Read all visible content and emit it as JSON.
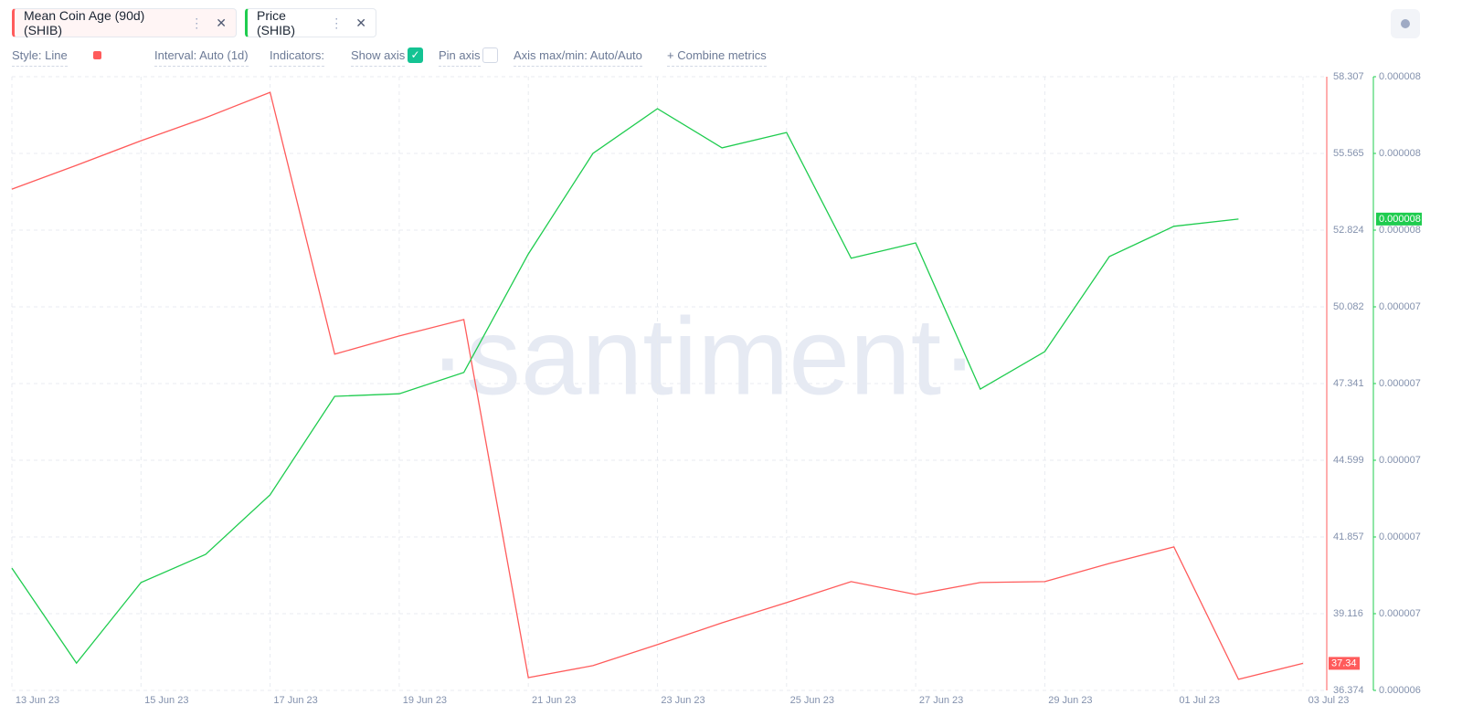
{
  "toolbar": {
    "style": "Style: Line",
    "interval": "Interval: Auto (1d)",
    "indicators": "Indicators:",
    "show_axis": "Show axis",
    "pin_axis": "Pin axis",
    "axis_maxmin": "Axis max/min: Auto/Auto",
    "combine": "Combine metrics"
  },
  "chart_data": {
    "type": "line",
    "watermark": "·santiment·",
    "categories": [
      "13 Jun 23",
      null,
      "15 Jun 23",
      null,
      "17 Jun 23",
      null,
      "19 Jun 23",
      null,
      "21 Jun 23",
      null,
      "23 Jun 23",
      null,
      "25 Jun 23",
      null,
      "27 Jun 23",
      null,
      "29 Jun 23",
      null,
      "01 Jul 23",
      null,
      "03 Jul 23"
    ],
    "ylim": [
      36.374,
      58.307
    ],
    "yticks": [
      36.374,
      39.116,
      41.857,
      44.599,
      47.341,
      50.082,
      52.824,
      55.565,
      58.307
    ],
    "y2lim": [
      6.48e-06,
      7.92e-06
    ],
    "y2ticks": [
      {
        "value": 6.48e-06,
        "label": "0.000006"
      },
      {
        "value": 6.66e-06,
        "label": "0.000007"
      },
      {
        "value": 6.84e-06,
        "label": "0.000007"
      },
      {
        "value": 7.02e-06,
        "label": "0.000007"
      },
      {
        "value": 7.2e-06,
        "label": "0.000007"
      },
      {
        "value": 7.38e-06,
        "label": "0.000007"
      },
      {
        "value": 7.56e-06,
        "label": "0.000008"
      },
      {
        "value": 7.74e-06,
        "label": "0.000008"
      },
      {
        "value": 7.92e-06,
        "label": "0.000008"
      }
    ],
    "grid": true,
    "series": [
      {
        "name": "Mean Coin Age (90d) (SHIB)",
        "color": "#ff5b5b",
        "axis": "y",
        "values": [
          54.29,
          55.14,
          56.02,
          56.84,
          57.75,
          48.39,
          49.04,
          49.63,
          36.83,
          37.26,
          38.01,
          38.79,
          39.51,
          40.26,
          39.8,
          40.23,
          40.26,
          40.91,
          41.5,
          36.77,
          37.34
        ],
        "value_labels": [
          null,
          null,
          null,
          null,
          null,
          null,
          null,
          null,
          null,
          null,
          null,
          null,
          null,
          null,
          null,
          null,
          null,
          null,
          null,
          null,
          "37.34"
        ]
      },
      {
        "name": "Price (SHIB)",
        "color": "#1fcc4f",
        "axis": "y2",
        "values": [
          6.767e-06,
          6.544e-06,
          6.733e-06,
          6.799e-06,
          6.939e-06,
          7.17e-06,
          7.176e-06,
          7.226e-06,
          7.504e-06,
          7.74e-06,
          7.845e-06,
          7.753e-06,
          7.789e-06,
          7.494e-06,
          7.53e-06,
          7.187e-06,
          7.275e-06,
          7.498e-06,
          7.569e-06,
          7.586e-06,
          null
        ],
        "value_labels": [
          null,
          null,
          null,
          null,
          null,
          null,
          null,
          null,
          null,
          null,
          null,
          null,
          null,
          null,
          null,
          null,
          null,
          null,
          null,
          "0.000008",
          null
        ]
      }
    ]
  }
}
